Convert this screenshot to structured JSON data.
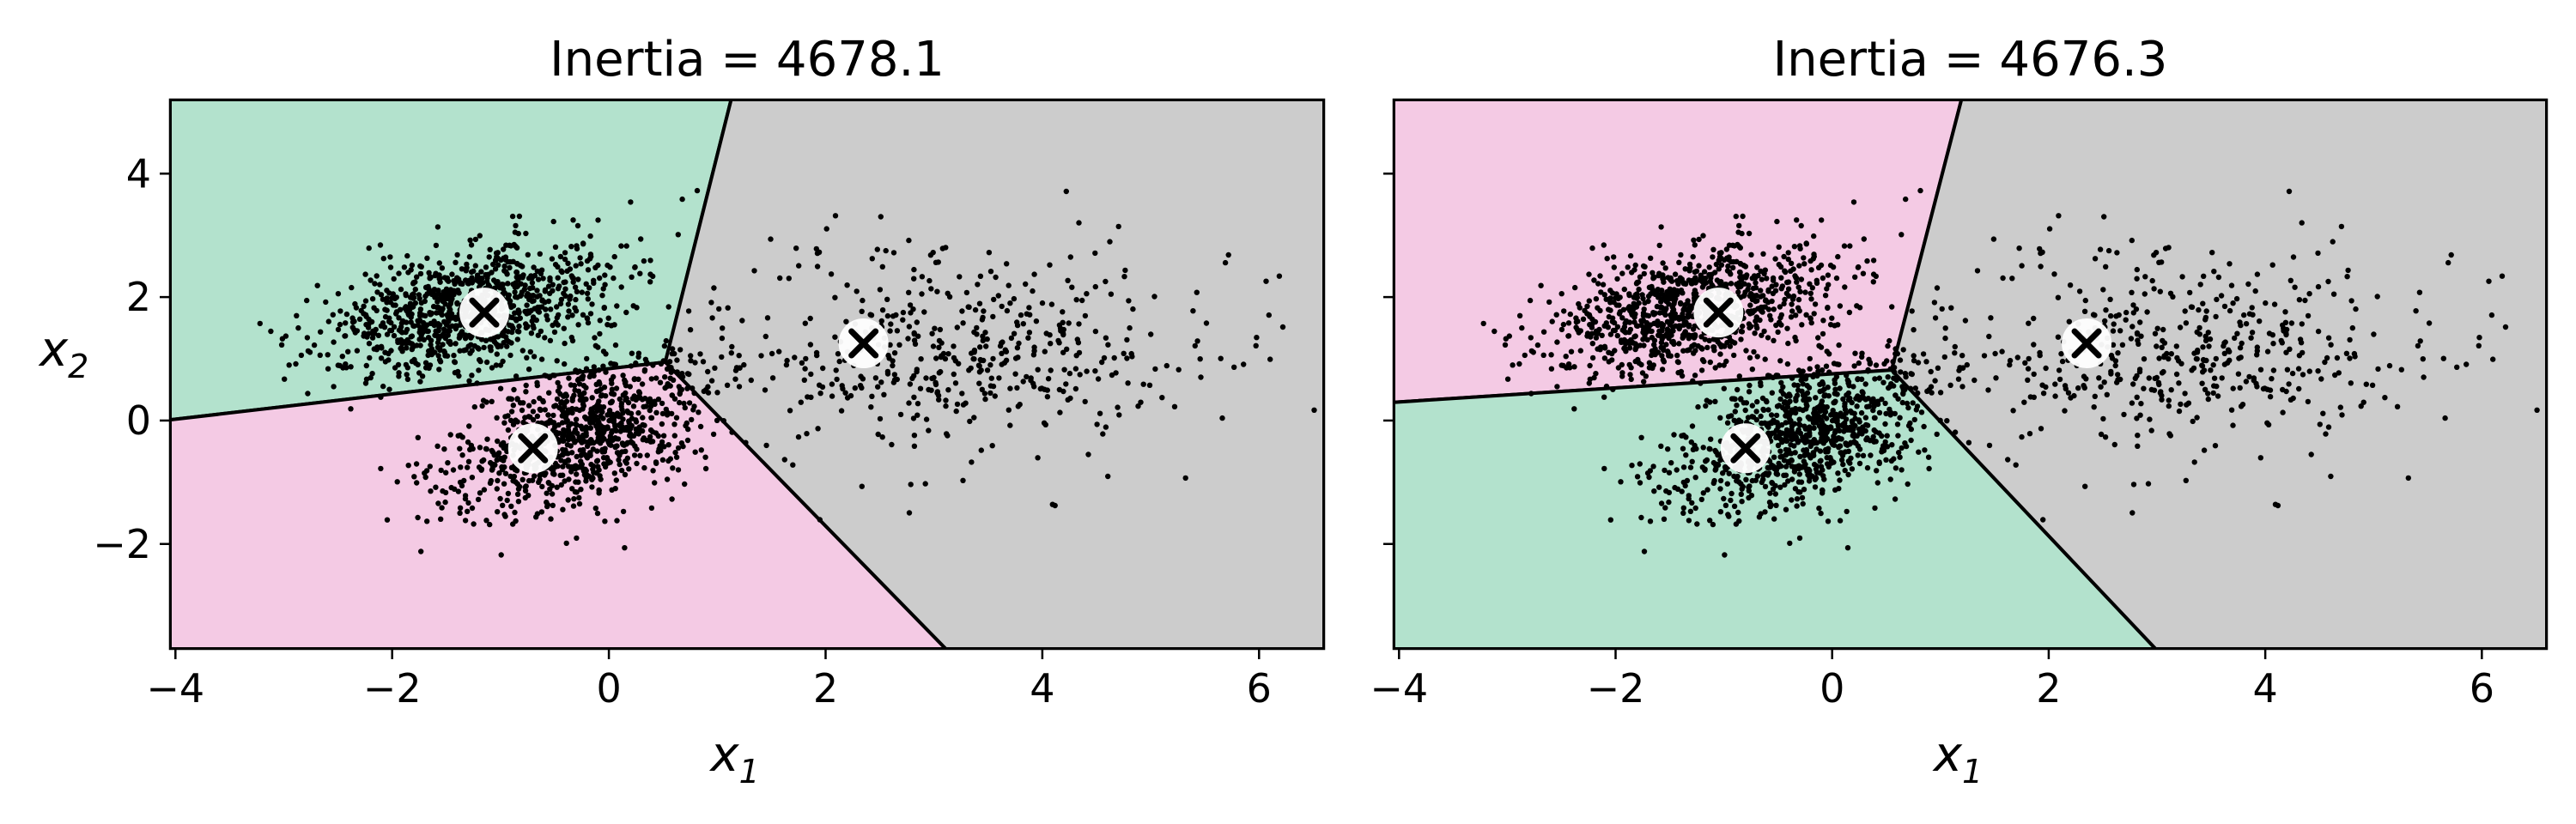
{
  "chart_data": [
    {
      "type": "scatter",
      "title": "Inertia = 4678.1",
      "xlabel_base": "x",
      "xlabel_sub": "1",
      "ylabel_base": "x",
      "ylabel_sub": "2",
      "xlim": [
        -4.05,
        6.6
      ],
      "ylim": [
        -3.7,
        5.2
      ],
      "xticks": [
        -4,
        -2,
        0,
        2,
        4,
        6
      ],
      "xtick_labels": [
        "−4",
        "−2",
        "0",
        "2",
        "4",
        "6"
      ],
      "yticks": [
        -2,
        0,
        2,
        4
      ],
      "ytick_labels": [
        "−2",
        "0",
        "2",
        "4"
      ],
      "show_y_tick_labels": true,
      "centroids": [
        {
          "x": -1.15,
          "y": 1.75,
          "color": "#b3e2cd"
        },
        {
          "x": -0.7,
          "y": -0.45,
          "color": "#f4cae4"
        },
        {
          "x": 2.35,
          "y": 1.25,
          "color": "#cccccc"
        }
      ]
    },
    {
      "type": "scatter",
      "title": "Inertia = 4676.3",
      "xlabel_base": "x",
      "xlabel_sub": "1",
      "ylabel_base": "",
      "ylabel_sub": "",
      "xlim": [
        -4.05,
        6.6
      ],
      "ylim": [
        -3.7,
        5.2
      ],
      "xticks": [
        -4,
        -2,
        0,
        2,
        4,
        6
      ],
      "xtick_labels": [
        "−4",
        "−2",
        "0",
        "2",
        "4",
        "6"
      ],
      "yticks": [
        -2,
        0,
        2,
        4
      ],
      "ytick_labels": [
        "",
        "",
        "",
        ""
      ],
      "show_y_tick_labels": false,
      "centroids": [
        {
          "x": -1.05,
          "y": 1.75,
          "color": "#f4cae4"
        },
        {
          "x": -0.8,
          "y": -0.45,
          "color": "#b3e2cd"
        },
        {
          "x": 2.35,
          "y": 1.25,
          "color": "#cccccc"
        }
      ]
    }
  ],
  "point_color": "#000000",
  "boundary_color": "#000000"
}
